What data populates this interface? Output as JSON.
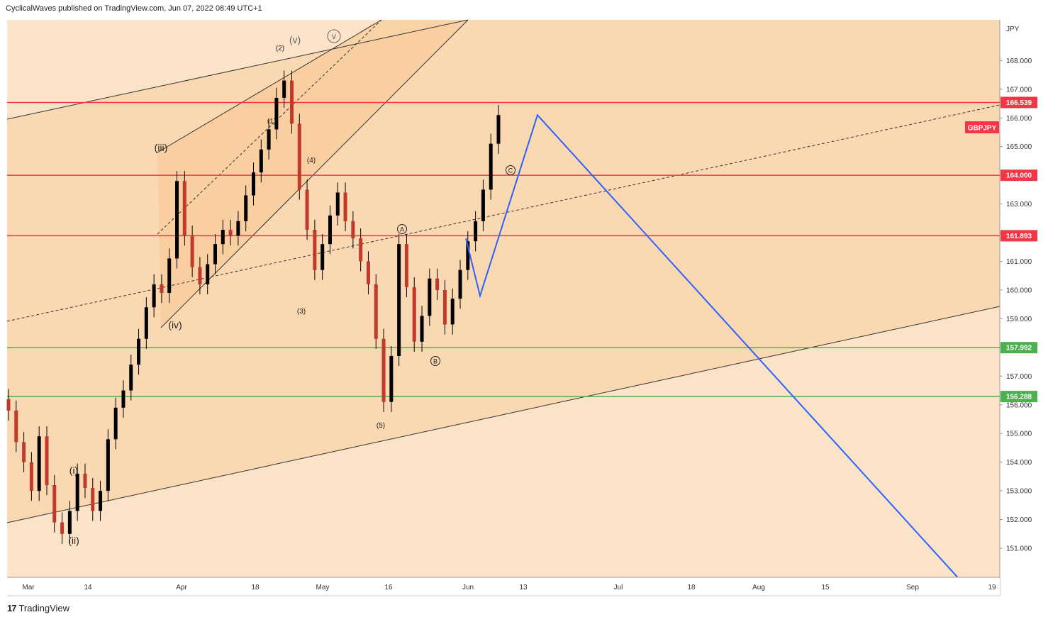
{
  "header": {
    "publisher": "CyclicalWaves published on TradingView.com, Jun 07, 2022 08:49 UTC+1"
  },
  "footer": {
    "brand": "TradingView",
    "logo_text": "17"
  },
  "colors": {
    "bg_light": "#fbe3c9",
    "channel_fill": "#fad3a6",
    "red_level": "#f23645",
    "green_level": "#4caf50",
    "projection": "#2962ff",
    "candle": "#000000"
  },
  "chart_data": {
    "type": "candlestick",
    "symbol": "GBPJPY",
    "axis_unit": "JPY",
    "y_ticks": [
      "151.000",
      "152.000",
      "153.000",
      "154.000",
      "155.000",
      "156.000",
      "157.000",
      "158.000",
      "159.000",
      "160.000",
      "161.000",
      "162.000",
      "163.000",
      "164.000",
      "165.000",
      "166.000",
      "167.000",
      "168.000"
    ],
    "x_ticks": [
      "Mar",
      "14",
      "Apr",
      "18",
      "May",
      "16",
      "Jun",
      "13",
      "Jul",
      "18",
      "Aug",
      "15",
      "Sep",
      "19"
    ],
    "levels": [
      {
        "value": 166.539,
        "label": "166.539",
        "color": "red"
      },
      {
        "value": 164.0,
        "label": "164.000",
        "color": "red"
      },
      {
        "value": 161.893,
        "label": "161.893",
        "color": "red"
      },
      {
        "value": 157.992,
        "label": "157.992",
        "color": "green"
      },
      {
        "value": 156.288,
        "label": "156.288",
        "color": "green"
      }
    ],
    "wave_labels": [
      "(i)",
      "(ii)",
      "(iii)",
      "(iv)",
      "(v)",
      "v",
      "(1)",
      "(2)",
      "(3)",
      "(4)",
      "(5)",
      "A",
      "B",
      "C"
    ],
    "closes": [
      155.8,
      154.7,
      154.0,
      153.0,
      154.9,
      153.2,
      151.9,
      151.5,
      152.3,
      153.6,
      153.1,
      152.3,
      153.0,
      154.8,
      155.9,
      156.5,
      157.4,
      158.3,
      159.4,
      160.2,
      159.9,
      161.1,
      163.8,
      161.9,
      160.8,
      160.2,
      160.9,
      161.6,
      162.1,
      161.9,
      162.4,
      163.3,
      164.1,
      164.9,
      165.6,
      166.7,
      167.3,
      165.8,
      163.5,
      162.1,
      160.7,
      161.6,
      162.6,
      163.4,
      162.4,
      161.8,
      161.0,
      160.2,
      158.3,
      156.1,
      157.7,
      161.6,
      160.1,
      158.2,
      159.1,
      160.4,
      160.0,
      158.8,
      159.7,
      160.7,
      161.7,
      162.4,
      163.5,
      165.1,
      166.1
    ],
    "projection_path": [
      {
        "date": "Jun 01",
        "value": 161.8
      },
      {
        "date": "Jun 02",
        "value": 159.8
      },
      {
        "date": "Jun 15",
        "value": 166.1
      },
      {
        "date": "Sep 12",
        "value": 150.0
      }
    ]
  }
}
